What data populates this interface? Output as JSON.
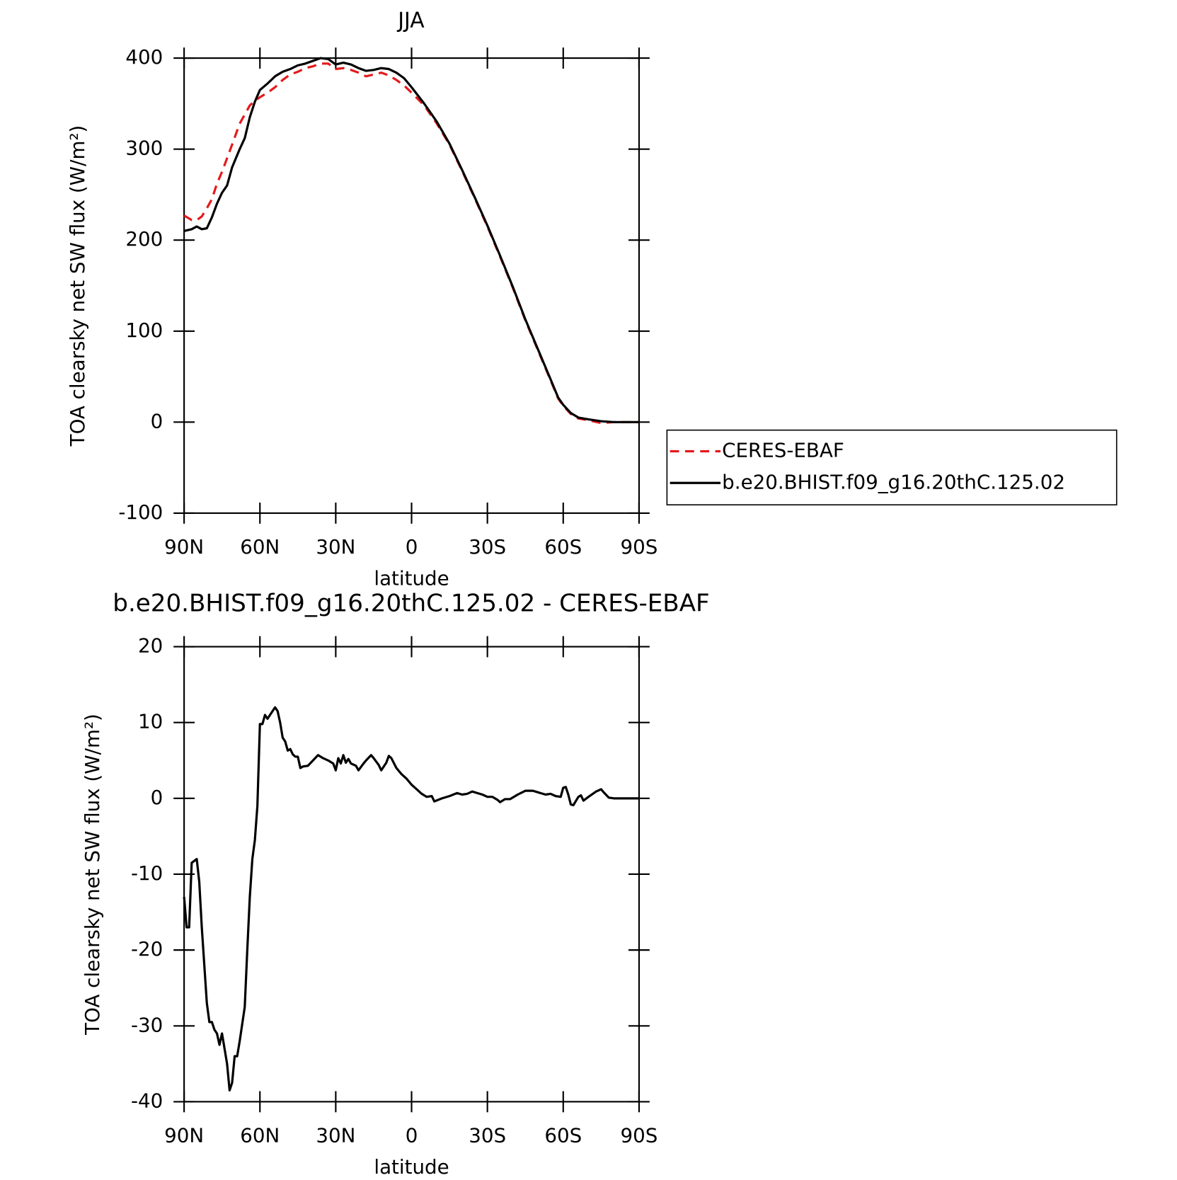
{
  "chart_data": [
    {
      "type": "line",
      "title": "JJA",
      "xlabel": "latitude",
      "ylabel": "TOA clearsky net SW flux (W/m²)",
      "x": [
        90,
        87,
        85,
        83,
        81,
        79,
        77,
        75,
        73,
        71,
        68,
        66,
        64,
        62,
        60,
        57,
        54,
        51,
        48,
        45,
        42,
        39,
        36,
        33,
        30,
        27,
        24,
        21,
        18,
        15,
        12,
        9,
        6,
        3,
        0,
        -5,
        -10,
        -15,
        -20,
        -25,
        -30,
        -35,
        -40,
        -45,
        -50,
        -55,
        -58,
        -60,
        -63,
        -66,
        -70,
        -75,
        -80,
        -85,
        -90
      ],
      "series": [
        {
          "name": "CERES-EBAF",
          "color": "#e41a1c",
          "linestyle": "dashed",
          "values": [
            227,
            222,
            222,
            226,
            235,
            245,
            262,
            275,
            290,
            305,
            328,
            338,
            348,
            353,
            357,
            362,
            368,
            376,
            382,
            385,
            389,
            391,
            394,
            394,
            388,
            389,
            387,
            384,
            380,
            382,
            384,
            381,
            376,
            370,
            362,
            348,
            328,
            305,
            276,
            246,
            215,
            182,
            148,
            112,
            79,
            46,
            26,
            18,
            9,
            4,
            2,
            -1,
            0,
            0,
            0
          ]
        },
        {
          "name": "b.e20.BHIST.f09_g16.20thC.125.02",
          "color": "#000000",
          "linestyle": "solid",
          "values": [
            210,
            212,
            215,
            212,
            213,
            225,
            240,
            252,
            260,
            280,
            300,
            312,
            335,
            352,
            365,
            372,
            380,
            385,
            388,
            392,
            394,
            397,
            400,
            399,
            393,
            395,
            393,
            389,
            386,
            387,
            389,
            388,
            384,
            378,
            368,
            350,
            330,
            306,
            277,
            247,
            216,
            183,
            149,
            113,
            80,
            47,
            27,
            19,
            10,
            5,
            3,
            1,
            0,
            0,
            0
          ]
        }
      ],
      "xlim": [
        90,
        -90
      ],
      "ylim": [
        -100,
        400
      ],
      "xticks": [
        {
          "value": 90,
          "label": "90N"
        },
        {
          "value": 60,
          "label": "60N"
        },
        {
          "value": 30,
          "label": "30N"
        },
        0,
        {
          "value": -30,
          "label": "30S"
        },
        {
          "value": -60,
          "label": "60S"
        },
        {
          "value": -90,
          "label": "90S"
        }
      ],
      "yticks": [
        -100,
        0,
        100,
        200,
        300,
        400
      ],
      "legend": "right"
    },
    {
      "type": "line",
      "title": "b.e20.BHIST.f09_g16.20thC.125.02 - CERES-EBAF",
      "xlabel": "latitude",
      "ylabel": "TOA clearsky net SW flux (W/m²)",
      "x": [
        90,
        89,
        88,
        87,
        85,
        84,
        83,
        81,
        80,
        79,
        78,
        77,
        76,
        75,
        74,
        73,
        72,
        71,
        70,
        69,
        68,
        66,
        65,
        64,
        63,
        62,
        61,
        60,
        59,
        58,
        57,
        56,
        55,
        54,
        53,
        52,
        51,
        50,
        49,
        48,
        47,
        46,
        45,
        44,
        43,
        41,
        39,
        37,
        35,
        33,
        31,
        30,
        29,
        28,
        27,
        26,
        25,
        24,
        22,
        21,
        19,
        18,
        16,
        15,
        13,
        12,
        10,
        9,
        8,
        6,
        4,
        2,
        0,
        -2,
        -4,
        -6,
        -8,
        -9,
        -12,
        -15,
        -18,
        -20,
        -22,
        -24,
        -26,
        -28,
        -30,
        -32,
        -34,
        -35,
        -37,
        -39,
        -42,
        -45,
        -48,
        -50,
        -53,
        -55,
        -57,
        -59,
        -60,
        -61,
        -62,
        -63,
        -64,
        -66,
        -67,
        -68,
        -70,
        -73,
        -75,
        -76,
        -78,
        -80,
        -90
      ],
      "values": [
        -13,
        -17,
        -17,
        -8.5,
        -8,
        -11,
        -17,
        -27,
        -29.5,
        -29.5,
        -30.5,
        -31,
        -32.5,
        -31,
        -33,
        -35,
        -38.5,
        -37.5,
        -34,
        -34,
        -32,
        -27.5,
        -20,
        -13,
        -8,
        -5.5,
        -1,
        9.8,
        9.8,
        11,
        10.5,
        11,
        11.5,
        12,
        11.5,
        10,
        8,
        7.5,
        6.3,
        6.5,
        5.8,
        5.5,
        5.5,
        4,
        4.2,
        4.3,
        5,
        5.7,
        5.3,
        5,
        4.6,
        3.7,
        5.3,
        4.6,
        5.7,
        4.7,
        5.2,
        4.6,
        4.3,
        3.7,
        4.6,
        5,
        5.7,
        5.3,
        4.4,
        3.7,
        4.7,
        5.6,
        5.3,
        4,
        3.2,
        2.6,
        1.8,
        1.2,
        0.6,
        0.2,
        0.3,
        -0.4,
        0,
        0.3,
        0.7,
        0.5,
        0.6,
        0.9,
        0.7,
        0.5,
        0.2,
        0.2,
        -0.2,
        -0.5,
        -0.1,
        -0.1,
        0.5,
        1,
        1,
        0.8,
        0.5,
        0.6,
        0.3,
        0.2,
        1.4,
        1.5,
        0.5,
        -0.8,
        -0.9,
        0.2,
        0.4,
        -0.3,
        0.2,
        0.9,
        1.2,
        0.8,
        0.1,
        0,
        0
      ],
      "color": "#000000",
      "xlim": [
        90,
        -90
      ],
      "ylim": [
        -40,
        20
      ],
      "xticks": [
        {
          "value": 90,
          "label": "90N"
        },
        {
          "value": 60,
          "label": "60N"
        },
        {
          "value": 30,
          "label": "30N"
        },
        0,
        {
          "value": -30,
          "label": "30S"
        },
        {
          "value": -60,
          "label": "60S"
        },
        {
          "value": -90,
          "label": "90S"
        }
      ],
      "yticks": [
        -40,
        -30,
        -20,
        -10,
        0,
        10,
        20
      ]
    }
  ]
}
